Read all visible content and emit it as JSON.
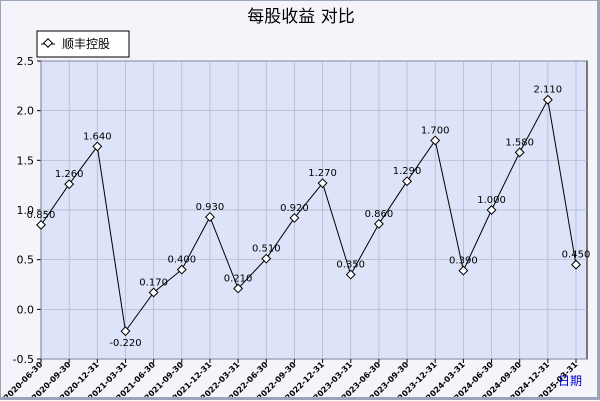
{
  "chart_data": {
    "type": "line",
    "title": "每股收益  对比",
    "legend": {
      "position": "top-left",
      "entries": [
        "顺丰控股"
      ]
    },
    "xlabel": "日期",
    "ylabel": "",
    "ylim": [
      -0.5,
      2.5
    ],
    "yticks": [
      "2.5",
      "2.0",
      "1.5",
      "1.0",
      "0.5",
      "0.0",
      "-0.5"
    ],
    "grid": true,
    "x": [
      "2020-06-30",
      "2020-09-30",
      "2020-12-31",
      "2021-03-31",
      "2021-06-30",
      "2021-09-30",
      "2021-12-31",
      "2022-03-31",
      "2022-06-30",
      "2022-09-30",
      "2022-12-31",
      "2023-03-31",
      "2023-06-30",
      "2023-09-30",
      "2023-12-31",
      "2024-03-31",
      "2024-06-30",
      "2024-09-30",
      "2024-12-31",
      "2025-03-31"
    ],
    "series": [
      {
        "name": "顺丰控股",
        "color": "#000000",
        "values": [
          0.85,
          1.26,
          1.64,
          -0.22,
          0.17,
          0.4,
          0.93,
          0.21,
          0.51,
          0.92,
          1.27,
          0.35,
          0.86,
          1.29,
          1.7,
          0.39,
          1.0,
          1.58,
          2.11,
          0.45
        ],
        "labels": [
          "0.850",
          "1.260",
          "1.640",
          "-0.220",
          "0.170",
          "0.400",
          "0.930",
          "0.210",
          "0.510",
          "0.920",
          "1.270",
          "0.350",
          "0.860",
          "1.290",
          "1.700",
          "0.390",
          "1.000",
          "1.580",
          "2.110",
          "0.450"
        ]
      }
    ],
    "colors": {
      "plot_background": "#dde3f8",
      "grid": "#aab4cc",
      "x_axis_label": "#0000cc"
    }
  }
}
